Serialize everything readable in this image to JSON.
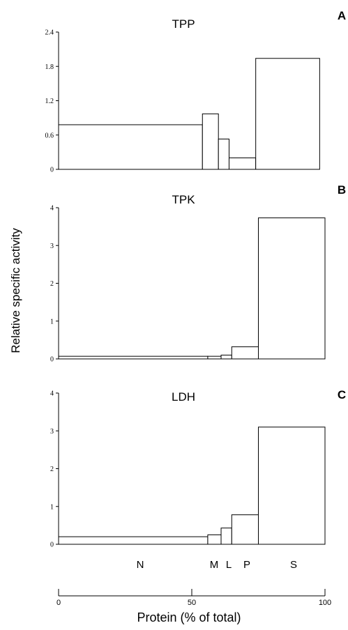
{
  "figure": {
    "ylabel": "Relative specific activity",
    "xlabel": "Protein (% of total)",
    "fraction_labels": [
      "N",
      "M",
      "L",
      "P",
      "S"
    ],
    "x_axis": {
      "ticks": [
        "0",
        "50",
        "100"
      ],
      "xlim": [
        0,
        100
      ]
    }
  },
  "chart_data": [
    {
      "type": "bar",
      "panel": "A",
      "title": "TPP",
      "ylim": [
        0,
        2.4
      ],
      "yticks": [
        "0",
        "0.6",
        "1.2",
        "1.8",
        "2.4"
      ],
      "bars": [
        {
          "fraction": "N",
          "x_start": 0,
          "x_end": 54,
          "value": 0.78
        },
        {
          "fraction": "M",
          "x_start": 54,
          "x_end": 60,
          "value": 0.97
        },
        {
          "fraction": "L",
          "x_start": 60,
          "x_end": 64,
          "value": 0.53
        },
        {
          "fraction": "P",
          "x_start": 64,
          "x_end": 74,
          "value": 0.2
        },
        {
          "fraction": "S",
          "x_start": 74,
          "x_end": 98,
          "value": 1.94
        }
      ]
    },
    {
      "type": "bar",
      "panel": "B",
      "title": "TPK",
      "ylim": [
        0,
        4
      ],
      "yticks": [
        "0",
        "1",
        "2",
        "3",
        "4"
      ],
      "bars": [
        {
          "fraction": "N",
          "x_start": 0,
          "x_end": 56,
          "value": 0.07
        },
        {
          "fraction": "M",
          "x_start": 56,
          "x_end": 61,
          "value": 0.07
        },
        {
          "fraction": "L",
          "x_start": 61,
          "x_end": 65,
          "value": 0.1
        },
        {
          "fraction": "P",
          "x_start": 65,
          "x_end": 75,
          "value": 0.32
        },
        {
          "fraction": "S",
          "x_start": 75,
          "x_end": 100,
          "value": 3.73
        }
      ]
    },
    {
      "type": "bar",
      "panel": "C",
      "title": "LDH",
      "ylim": [
        0,
        4
      ],
      "yticks": [
        "0",
        "1",
        "2",
        "3",
        "4"
      ],
      "bars": [
        {
          "fraction": "N",
          "x_start": 0,
          "x_end": 56,
          "value": 0.2
        },
        {
          "fraction": "M",
          "x_start": 56,
          "x_end": 61,
          "value": 0.25
        },
        {
          "fraction": "L",
          "x_start": 61,
          "x_end": 65,
          "value": 0.43
        },
        {
          "fraction": "P",
          "x_start": 65,
          "x_end": 75,
          "value": 0.78
        },
        {
          "fraction": "S",
          "x_start": 75,
          "x_end": 100,
          "value": 3.1
        }
      ]
    }
  ]
}
